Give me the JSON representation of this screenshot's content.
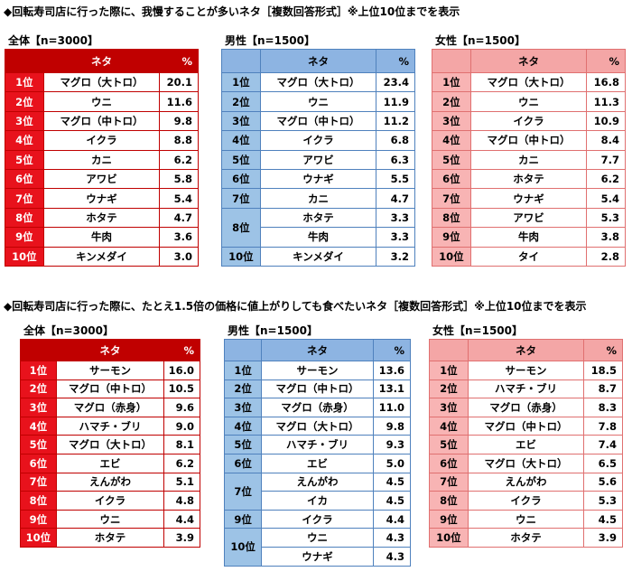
{
  "sections": [
    {
      "title": "◆回転寿司店に行った際に、我慢することが多いネタ［複数回答形式］※上位10位までを表示",
      "tables": [
        {
          "label": "全体【n=3000】",
          "header": [
            "ネタ",
            "%"
          ],
          "groups": [
            {
              "rank": "1位",
              "items": [
                {
                  "name": "マグロ（大トロ）",
                  "pct": "20.1"
                }
              ]
            },
            {
              "rank": "2位",
              "items": [
                {
                  "name": "ウニ",
                  "pct": "11.6"
                }
              ]
            },
            {
              "rank": "3位",
              "items": [
                {
                  "name": "マグロ（中トロ）",
                  "pct": "9.8"
                }
              ]
            },
            {
              "rank": "4位",
              "items": [
                {
                  "name": "イクラ",
                  "pct": "8.8"
                }
              ]
            },
            {
              "rank": "5位",
              "items": [
                {
                  "name": "カニ",
                  "pct": "6.2"
                }
              ]
            },
            {
              "rank": "6位",
              "items": [
                {
                  "name": "アワビ",
                  "pct": "5.8"
                }
              ]
            },
            {
              "rank": "7位",
              "items": [
                {
                  "name": "ウナギ",
                  "pct": "5.4"
                }
              ]
            },
            {
              "rank": "8位",
              "items": [
                {
                  "name": "ホタテ",
                  "pct": "4.7"
                }
              ]
            },
            {
              "rank": "9位",
              "items": [
                {
                  "name": "牛肉",
                  "pct": "3.6"
                }
              ]
            },
            {
              "rank": "10位",
              "items": [
                {
                  "name": "キンメダイ",
                  "pct": "3.0"
                }
              ]
            }
          ]
        },
        {
          "label": "男性【n=1500】",
          "header": [
            "ネタ",
            "%"
          ],
          "groups": [
            {
              "rank": "1位",
              "items": [
                {
                  "name": "マグロ（大トロ）",
                  "pct": "23.4"
                }
              ]
            },
            {
              "rank": "2位",
              "items": [
                {
                  "name": "ウニ",
                  "pct": "11.9"
                }
              ]
            },
            {
              "rank": "3位",
              "items": [
                {
                  "name": "マグロ（中トロ）",
                  "pct": "11.2"
                }
              ]
            },
            {
              "rank": "4位",
              "items": [
                {
                  "name": "イクラ",
                  "pct": "6.8"
                }
              ]
            },
            {
              "rank": "5位",
              "items": [
                {
                  "name": "アワビ",
                  "pct": "6.3"
                }
              ]
            },
            {
              "rank": "6位",
              "items": [
                {
                  "name": "ウナギ",
                  "pct": "5.5"
                }
              ]
            },
            {
              "rank": "7位",
              "items": [
                {
                  "name": "カニ",
                  "pct": "4.7"
                }
              ]
            },
            {
              "rank": "8位",
              "items": [
                {
                  "name": "ホタテ",
                  "pct": "3.3"
                },
                {
                  "name": "牛肉",
                  "pct": "3.3"
                }
              ]
            },
            {
              "rank": "10位",
              "items": [
                {
                  "name": "キンメダイ",
                  "pct": "3.2"
                }
              ]
            }
          ]
        },
        {
          "label": "女性【n=1500】",
          "header": [
            "ネタ",
            "%"
          ],
          "groups": [
            {
              "rank": "1位",
              "items": [
                {
                  "name": "マグロ（大トロ）",
                  "pct": "16.8"
                }
              ]
            },
            {
              "rank": "2位",
              "items": [
                {
                  "name": "ウニ",
                  "pct": "11.3"
                }
              ]
            },
            {
              "rank": "3位",
              "items": [
                {
                  "name": "イクラ",
                  "pct": "10.9"
                }
              ]
            },
            {
              "rank": "4位",
              "items": [
                {
                  "name": "マグロ（中トロ）",
                  "pct": "8.4"
                }
              ]
            },
            {
              "rank": "5位",
              "items": [
                {
                  "name": "カニ",
                  "pct": "7.7"
                }
              ]
            },
            {
              "rank": "6位",
              "items": [
                {
                  "name": "ホタテ",
                  "pct": "6.2"
                }
              ]
            },
            {
              "rank": "7位",
              "items": [
                {
                  "name": "ウナギ",
                  "pct": "5.4"
                }
              ]
            },
            {
              "rank": "8位",
              "items": [
                {
                  "name": "アワビ",
                  "pct": "5.3"
                }
              ]
            },
            {
              "rank": "9位",
              "items": [
                {
                  "name": "牛肉",
                  "pct": "3.8"
                }
              ]
            },
            {
              "rank": "10位",
              "items": [
                {
                  "name": "タイ",
                  "pct": "2.8"
                }
              ]
            }
          ]
        }
      ]
    },
    {
      "title": "◆回転寿司店に行った際に、たとえ1.5倍の価格に値上がりしても食べたいネタ［複数回答形式］※上位10位までを表示",
      "tables": [
        {
          "label": "全体【n=3000】",
          "header": [
            "ネタ",
            "%"
          ],
          "groups": [
            {
              "rank": "1位",
              "items": [
                {
                  "name": "サーモン",
                  "pct": "16.0"
                }
              ]
            },
            {
              "rank": "2位",
              "items": [
                {
                  "name": "マグロ（中トロ）",
                  "pct": "10.5"
                }
              ]
            },
            {
              "rank": "3位",
              "items": [
                {
                  "name": "マグロ（赤身）",
                  "pct": "9.6"
                }
              ]
            },
            {
              "rank": "4位",
              "items": [
                {
                  "name": "ハマチ・ブリ",
                  "pct": "9.0"
                }
              ]
            },
            {
              "rank": "5位",
              "items": [
                {
                  "name": "マグロ（大トロ）",
                  "pct": "8.1"
                }
              ]
            },
            {
              "rank": "6位",
              "items": [
                {
                  "name": "エビ",
                  "pct": "6.2"
                }
              ]
            },
            {
              "rank": "7位",
              "items": [
                {
                  "name": "えんがわ",
                  "pct": "5.1"
                }
              ]
            },
            {
              "rank": "8位",
              "items": [
                {
                  "name": "イクラ",
                  "pct": "4.8"
                }
              ]
            },
            {
              "rank": "9位",
              "items": [
                {
                  "name": "ウニ",
                  "pct": "4.4"
                }
              ]
            },
            {
              "rank": "10位",
              "items": [
                {
                  "name": "ホタテ",
                  "pct": "3.9"
                }
              ]
            }
          ]
        },
        {
          "label": "男性【n=1500】",
          "header": [
            "ネタ",
            "%"
          ],
          "groups": [
            {
              "rank": "1位",
              "items": [
                {
                  "name": "サーモン",
                  "pct": "13.6"
                }
              ]
            },
            {
              "rank": "2位",
              "items": [
                {
                  "name": "マグロ（中トロ）",
                  "pct": "13.1"
                }
              ]
            },
            {
              "rank": "3位",
              "items": [
                {
                  "name": "マグロ（赤身）",
                  "pct": "11.0"
                }
              ]
            },
            {
              "rank": "4位",
              "items": [
                {
                  "name": "マグロ（大トロ）",
                  "pct": "9.8"
                }
              ]
            },
            {
              "rank": "5位",
              "items": [
                {
                  "name": "ハマチ・ブリ",
                  "pct": "9.3"
                }
              ]
            },
            {
              "rank": "6位",
              "items": [
                {
                  "name": "エビ",
                  "pct": "5.0"
                }
              ]
            },
            {
              "rank": "7位",
              "items": [
                {
                  "name": "えんがわ",
                  "pct": "4.5"
                },
                {
                  "name": "イカ",
                  "pct": "4.5"
                }
              ]
            },
            {
              "rank": "9位",
              "items": [
                {
                  "name": "イクラ",
                  "pct": "4.4"
                }
              ]
            },
            {
              "rank": "10位",
              "items": [
                {
                  "name": "ウニ",
                  "pct": "4.3"
                },
                {
                  "name": "ウナギ",
                  "pct": "4.3"
                }
              ]
            }
          ]
        },
        {
          "label": "女性【n=1500】",
          "header": [
            "ネタ",
            "%"
          ],
          "groups": [
            {
              "rank": "1位",
              "items": [
                {
                  "name": "サーモン",
                  "pct": "18.5"
                }
              ]
            },
            {
              "rank": "2位",
              "items": [
                {
                  "name": "ハマチ・ブリ",
                  "pct": "8.7"
                }
              ]
            },
            {
              "rank": "3位",
              "items": [
                {
                  "name": "マグロ（赤身）",
                  "pct": "8.3"
                }
              ]
            },
            {
              "rank": "4位",
              "items": [
                {
                  "name": "マグロ（中トロ）",
                  "pct": "7.8"
                }
              ]
            },
            {
              "rank": "5位",
              "items": [
                {
                  "name": "エビ",
                  "pct": "7.4"
                }
              ]
            },
            {
              "rank": "6位",
              "items": [
                {
                  "name": "マグロ（大トロ）",
                  "pct": "6.5"
                }
              ]
            },
            {
              "rank": "7位",
              "items": [
                {
                  "name": "えんがわ",
                  "pct": "5.6"
                }
              ]
            },
            {
              "rank": "8位",
              "items": [
                {
                  "name": "イクラ",
                  "pct": "5.3"
                }
              ]
            },
            {
              "rank": "9位",
              "items": [
                {
                  "name": "ウニ",
                  "pct": "4.5"
                }
              ]
            },
            {
              "rank": "10位",
              "items": [
                {
                  "name": "ホタテ",
                  "pct": "3.9"
                }
              ]
            }
          ]
        }
      ]
    }
  ]
}
